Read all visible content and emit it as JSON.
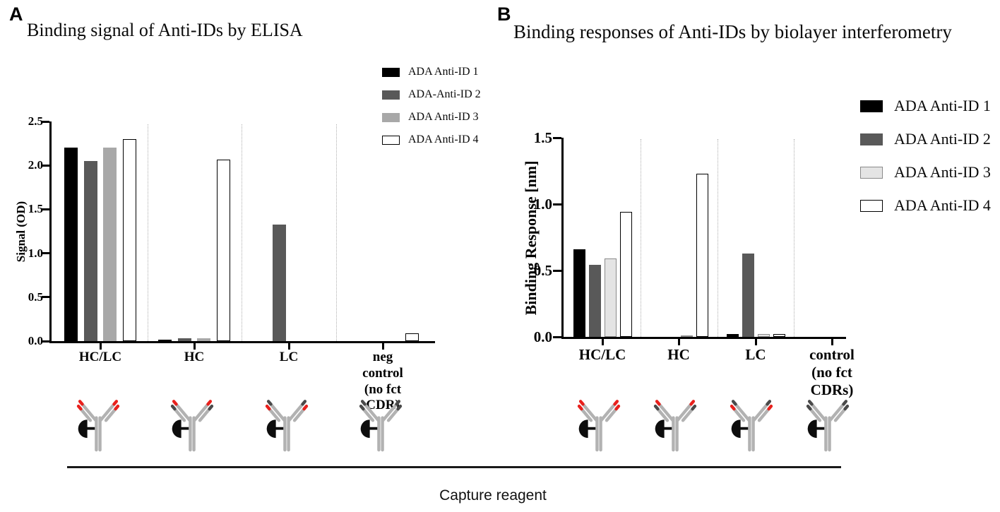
{
  "panels": [
    {
      "letter": "A",
      "title": "Binding signal of Anti-IDs by ELISA",
      "ylabel": "Signal (OD)"
    },
    {
      "letter": "B",
      "title": "Binding responses of Anti-IDs by biolayer interferometry",
      "ylabel": "Binding Response [nm]"
    }
  ],
  "chart_data": [
    {
      "type": "bar",
      "title": "Binding signal of Anti-IDs by ELISA",
      "ylabel": "Signal (OD)",
      "xlabel": "Capture reagent",
      "ylim": [
        0,
        2.5
      ],
      "yticks": [
        0,
        0.5,
        1.0,
        1.5,
        2.0,
        2.5
      ],
      "grid": false,
      "legend_position": "outside-upper-right",
      "categories": [
        "HC/LC",
        "HC",
        "LC",
        "neg control (no fct CDR)"
      ],
      "categories_display": [
        "HC/LC",
        "HC",
        "LC",
        "neg control\n(no fct CDR)"
      ],
      "series": [
        {
          "name": "ADA Anti-ID 1",
          "fill": "#000000",
          "border": "#000000",
          "values": [
            2.2,
            0.01,
            0,
            0
          ]
        },
        {
          "name": "ADA-Anti-ID 2",
          "fill": "#595959",
          "border": "#595959",
          "values": [
            2.05,
            0.03,
            1.33,
            0
          ]
        },
        {
          "name": "ADA Anti-ID 3",
          "fill": "#a8a8a8",
          "border": "#a8a8a8",
          "values": [
            2.2,
            0.03,
            0,
            0
          ]
        },
        {
          "name": "ADA Anti-ID 4",
          "fill": "#ffffff",
          "border": "#000000",
          "values": [
            2.3,
            2.07,
            0,
            0.09
          ]
        }
      ]
    },
    {
      "type": "bar",
      "title": "Binding responses of Anti-IDs by biolayer interferometry",
      "ylabel": "Binding Response [nm]",
      "xlabel": "Capture reagent",
      "ylim": [
        0,
        1.5
      ],
      "yticks": [
        0,
        0.5,
        1.0,
        1.5
      ],
      "grid": false,
      "legend_position": "outside-upper-right",
      "categories": [
        "HC/LC",
        "HC",
        "LC",
        "control (no fct CDRs)"
      ],
      "categories_display": [
        "HC/LC",
        "HC",
        "LC",
        "control\n(no fct CDRs)"
      ],
      "series": [
        {
          "name": "ADA Anti-ID 1",
          "fill": "#000000",
          "border": "#000000",
          "values": [
            0.66,
            0,
            0.02,
            0
          ]
        },
        {
          "name": "ADA Anti-ID 2",
          "fill": "#595959",
          "border": "#595959",
          "values": [
            0.54,
            0,
            0.63,
            0
          ]
        },
        {
          "name": "ADA Anti-ID 3",
          "fill": "#e4e4e4",
          "border": "#8a8a8a",
          "values": [
            0.59,
            0.01,
            0.02,
            0
          ]
        },
        {
          "name": "ADA Anti-ID 4",
          "fill": "#ffffff",
          "border": "#000000",
          "values": [
            0.94,
            1.23,
            0.02,
            0
          ]
        }
      ]
    }
  ],
  "icons": {
    "colors": {
      "red": "#e8211d",
      "dark": "#4a4a4a",
      "body": "#b2b2b2",
      "bead": "#0d0d0d"
    },
    "items": [
      {
        "name": "capture-hclc",
        "outer_tip": "red",
        "inner_tip": "red"
      },
      {
        "name": "capture-hc",
        "outer_tip": "dark",
        "inner_tip": "red"
      },
      {
        "name": "capture-lc",
        "outer_tip": "red",
        "inner_tip": "dark"
      },
      {
        "name": "capture-control",
        "outer_tip": "dark",
        "inner_tip": "dark"
      }
    ]
  },
  "footer": {
    "capture_reagent_label": "Capture reagent"
  }
}
